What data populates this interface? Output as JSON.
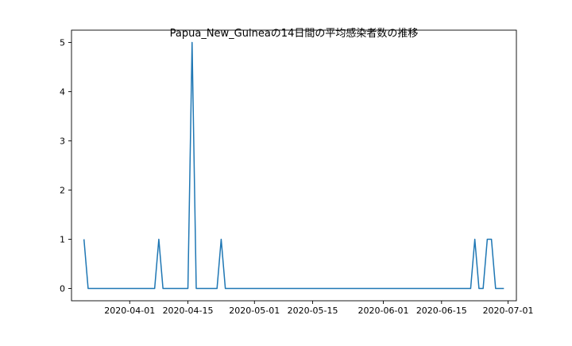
{
  "chart_data": {
    "type": "line",
    "title": "Papua_New_Guineaの14日間の平均感染者数の推移",
    "xlabel": "",
    "ylabel": "",
    "ylim": [
      -0.25,
      5.25
    ],
    "yticks": [
      0,
      1,
      2,
      3,
      4,
      5
    ],
    "xlim": [
      "2020-03-18",
      "2020-07-03"
    ],
    "xticks": [
      "2020-04-01",
      "2020-04-15",
      "2020-05-01",
      "2020-05-15",
      "2020-06-01",
      "2020-06-15",
      "2020-07-01"
    ],
    "grid": false,
    "line_color": "#1f77b4",
    "series": [
      {
        "points": [
          [
            "2020-03-21",
            1
          ],
          [
            "2020-03-22",
            0
          ],
          [
            "2020-04-07",
            0
          ],
          [
            "2020-04-08",
            1
          ],
          [
            "2020-04-09",
            0
          ],
          [
            "2020-04-15",
            0
          ],
          [
            "2020-04-16",
            5
          ],
          [
            "2020-04-17",
            0
          ],
          [
            "2020-04-22",
            0
          ],
          [
            "2020-04-23",
            1
          ],
          [
            "2020-04-24",
            0
          ],
          [
            "2020-06-22",
            0
          ],
          [
            "2020-06-23",
            1
          ],
          [
            "2020-06-24",
            0
          ],
          [
            "2020-06-25",
            0
          ],
          [
            "2020-06-26",
            1
          ],
          [
            "2020-06-27",
            1
          ],
          [
            "2020-06-28",
            0
          ],
          [
            "2020-06-30",
            0
          ]
        ]
      }
    ]
  }
}
